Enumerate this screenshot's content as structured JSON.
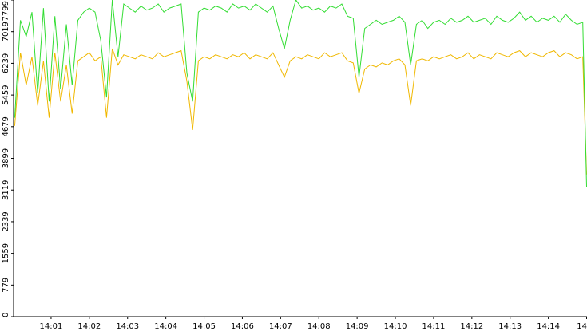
{
  "chart_data": {
    "type": "line",
    "x": [
      0.05,
      0.2,
      0.35,
      0.5,
      0.65,
      0.8,
      0.95,
      1.1,
      1.25,
      1.4,
      1.55,
      1.7,
      1.85,
      2.0,
      2.15,
      2.3,
      2.45,
      2.6,
      2.75,
      2.9,
      3.05,
      3.2,
      3.35,
      3.5,
      3.65,
      3.8,
      3.95,
      4.1,
      4.25,
      4.4,
      4.55,
      4.7,
      4.85,
      5.0,
      5.15,
      5.3,
      5.45,
      5.6,
      5.75,
      5.9,
      6.05,
      6.2,
      6.35,
      6.5,
      6.65,
      6.8,
      6.95,
      7.1,
      7.25,
      7.4,
      7.55,
      7.7,
      7.85,
      8.0,
      8.15,
      8.3,
      8.45,
      8.6,
      8.75,
      8.9,
      9.05,
      9.2,
      9.35,
      9.5,
      9.65,
      9.8,
      9.95,
      10.1,
      10.25,
      10.4,
      10.55,
      10.7,
      10.85,
      11.0,
      11.15,
      11.3,
      11.45,
      11.6,
      11.75,
      11.9,
      12.05,
      12.2,
      12.35,
      12.5,
      12.65,
      12.8,
      12.95,
      13.1,
      13.25,
      13.4,
      13.55,
      13.7,
      13.85,
      14.0,
      14.15,
      14.3,
      14.45,
      14.6,
      14.75,
      14.9,
      15.0
    ],
    "series": [
      {
        "color": "#33dd33",
        "values": [
          4900,
          7300,
          6900,
          7500,
          5500,
          7600,
          5300,
          7400,
          5600,
          7200,
          5700,
          7300,
          7500,
          7600,
          7500,
          6800,
          5400,
          7800,
          6400,
          7700,
          7600,
          7500,
          7650,
          7550,
          7600,
          7700,
          7500,
          7600,
          7650,
          7700,
          6000,
          5300,
          7500,
          7600,
          7550,
          7650,
          7600,
          7500,
          7700,
          7600,
          7650,
          7550,
          7700,
          7600,
          7500,
          7650,
          7100,
          6600,
          7300,
          7800,
          7600,
          7650,
          7550,
          7600,
          7500,
          7650,
          7600,
          7700,
          7400,
          7350,
          5900,
          7100,
          7200,
          7300,
          7200,
          7250,
          7300,
          7400,
          7250,
          6200,
          7200,
          7300,
          7100,
          7250,
          7300,
          7200,
          7350,
          7250,
          7300,
          7400,
          7250,
          7300,
          7350,
          7200,
          7400,
          7300,
          7250,
          7350,
          7500,
          7300,
          7400,
          7250,
          7350,
          7300,
          7400,
          7250,
          7450,
          7300,
          7200,
          7250,
          3200
        ]
      },
      {
        "color": "#f0b800",
        "values": [
          4700,
          6500,
          5700,
          6400,
          5200,
          6300,
          4900,
          6500,
          5300,
          6200,
          5000,
          6300,
          6400,
          6500,
          6300,
          6400,
          4900,
          6600,
          6200,
          6450,
          6400,
          6350,
          6450,
          6400,
          6350,
          6500,
          6400,
          6450,
          6500,
          6550,
          5800,
          4600,
          6300,
          6400,
          6350,
          6450,
          6400,
          6350,
          6450,
          6400,
          6500,
          6350,
          6450,
          6400,
          6350,
          6500,
          6200,
          5900,
          6300,
          6400,
          6350,
          6450,
          6400,
          6350,
          6500,
          6400,
          6450,
          6500,
          6300,
          6250,
          5500,
          6100,
          6200,
          6150,
          6250,
          6200,
          6300,
          6350,
          6200,
          5200,
          6300,
          6350,
          6300,
          6400,
          6350,
          6400,
          6450,
          6350,
          6400,
          6500,
          6350,
          6450,
          6400,
          6350,
          6500,
          6450,
          6400,
          6500,
          6550,
          6400,
          6500,
          6450,
          6400,
          6500,
          6550,
          6400,
          6500,
          6450,
          6350,
          6400,
          3500
        ]
      }
    ],
    "xlim": [
      0.02,
      15.01
    ],
    "xticks": [
      {
        "value": 1,
        "label": "14:01"
      },
      {
        "value": 2,
        "label": "14:02"
      },
      {
        "value": 3,
        "label": "14:03"
      },
      {
        "value": 4,
        "label": "14:04"
      },
      {
        "value": 5,
        "label": "14:05"
      },
      {
        "value": 6,
        "label": "14:06"
      },
      {
        "value": 7,
        "label": "14:07"
      },
      {
        "value": 8,
        "label": "14:08"
      },
      {
        "value": 9,
        "label": "14:09"
      },
      {
        "value": 10,
        "label": "14:10"
      },
      {
        "value": 11,
        "label": "14:11"
      },
      {
        "value": 12,
        "label": "14:12"
      },
      {
        "value": 13,
        "label": "14:13"
      },
      {
        "value": 14,
        "label": "14:14"
      },
      {
        "value": 15,
        "label": "14"
      }
    ],
    "ylim": [
      0,
      7799
    ],
    "yticks": [
      0,
      779,
      1559,
      2339,
      3119,
      3899,
      4679,
      5459,
      6239,
      7019,
      7799
    ],
    "grid": false
  }
}
